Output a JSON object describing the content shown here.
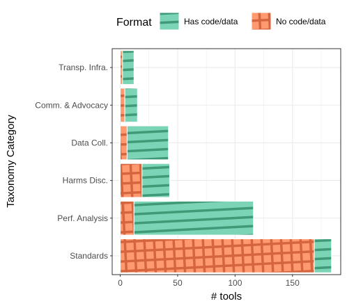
{
  "chart_data": {
    "type": "bar",
    "orientation": "horizontal",
    "stacked": true,
    "categories": [
      "Transp. Infra.",
      "Comm. & Advocacy",
      "Data Coll.",
      "Harms Disc.",
      "Perf. Analysis",
      "Standards"
    ],
    "series": [
      {
        "name": "No code/data",
        "values": [
          2,
          4,
          6,
          19,
          12,
          169
        ],
        "color": "#fc8d62",
        "pattern": "crosshatch"
      },
      {
        "name": "Has code/data",
        "values": [
          10,
          11,
          36,
          24,
          104,
          15
        ],
        "color": "#66c2a5",
        "pattern": "stripes"
      }
    ],
    "xlabel": "# tools",
    "ylabel": "Taxonomy Category",
    "xlim": [
      -7,
      192
    ],
    "xticks": [
      0,
      50,
      100,
      150
    ],
    "grid": true,
    "legend": {
      "title": "Format",
      "position": "top",
      "entries": [
        "Has code/data",
        "No code/data"
      ]
    }
  }
}
